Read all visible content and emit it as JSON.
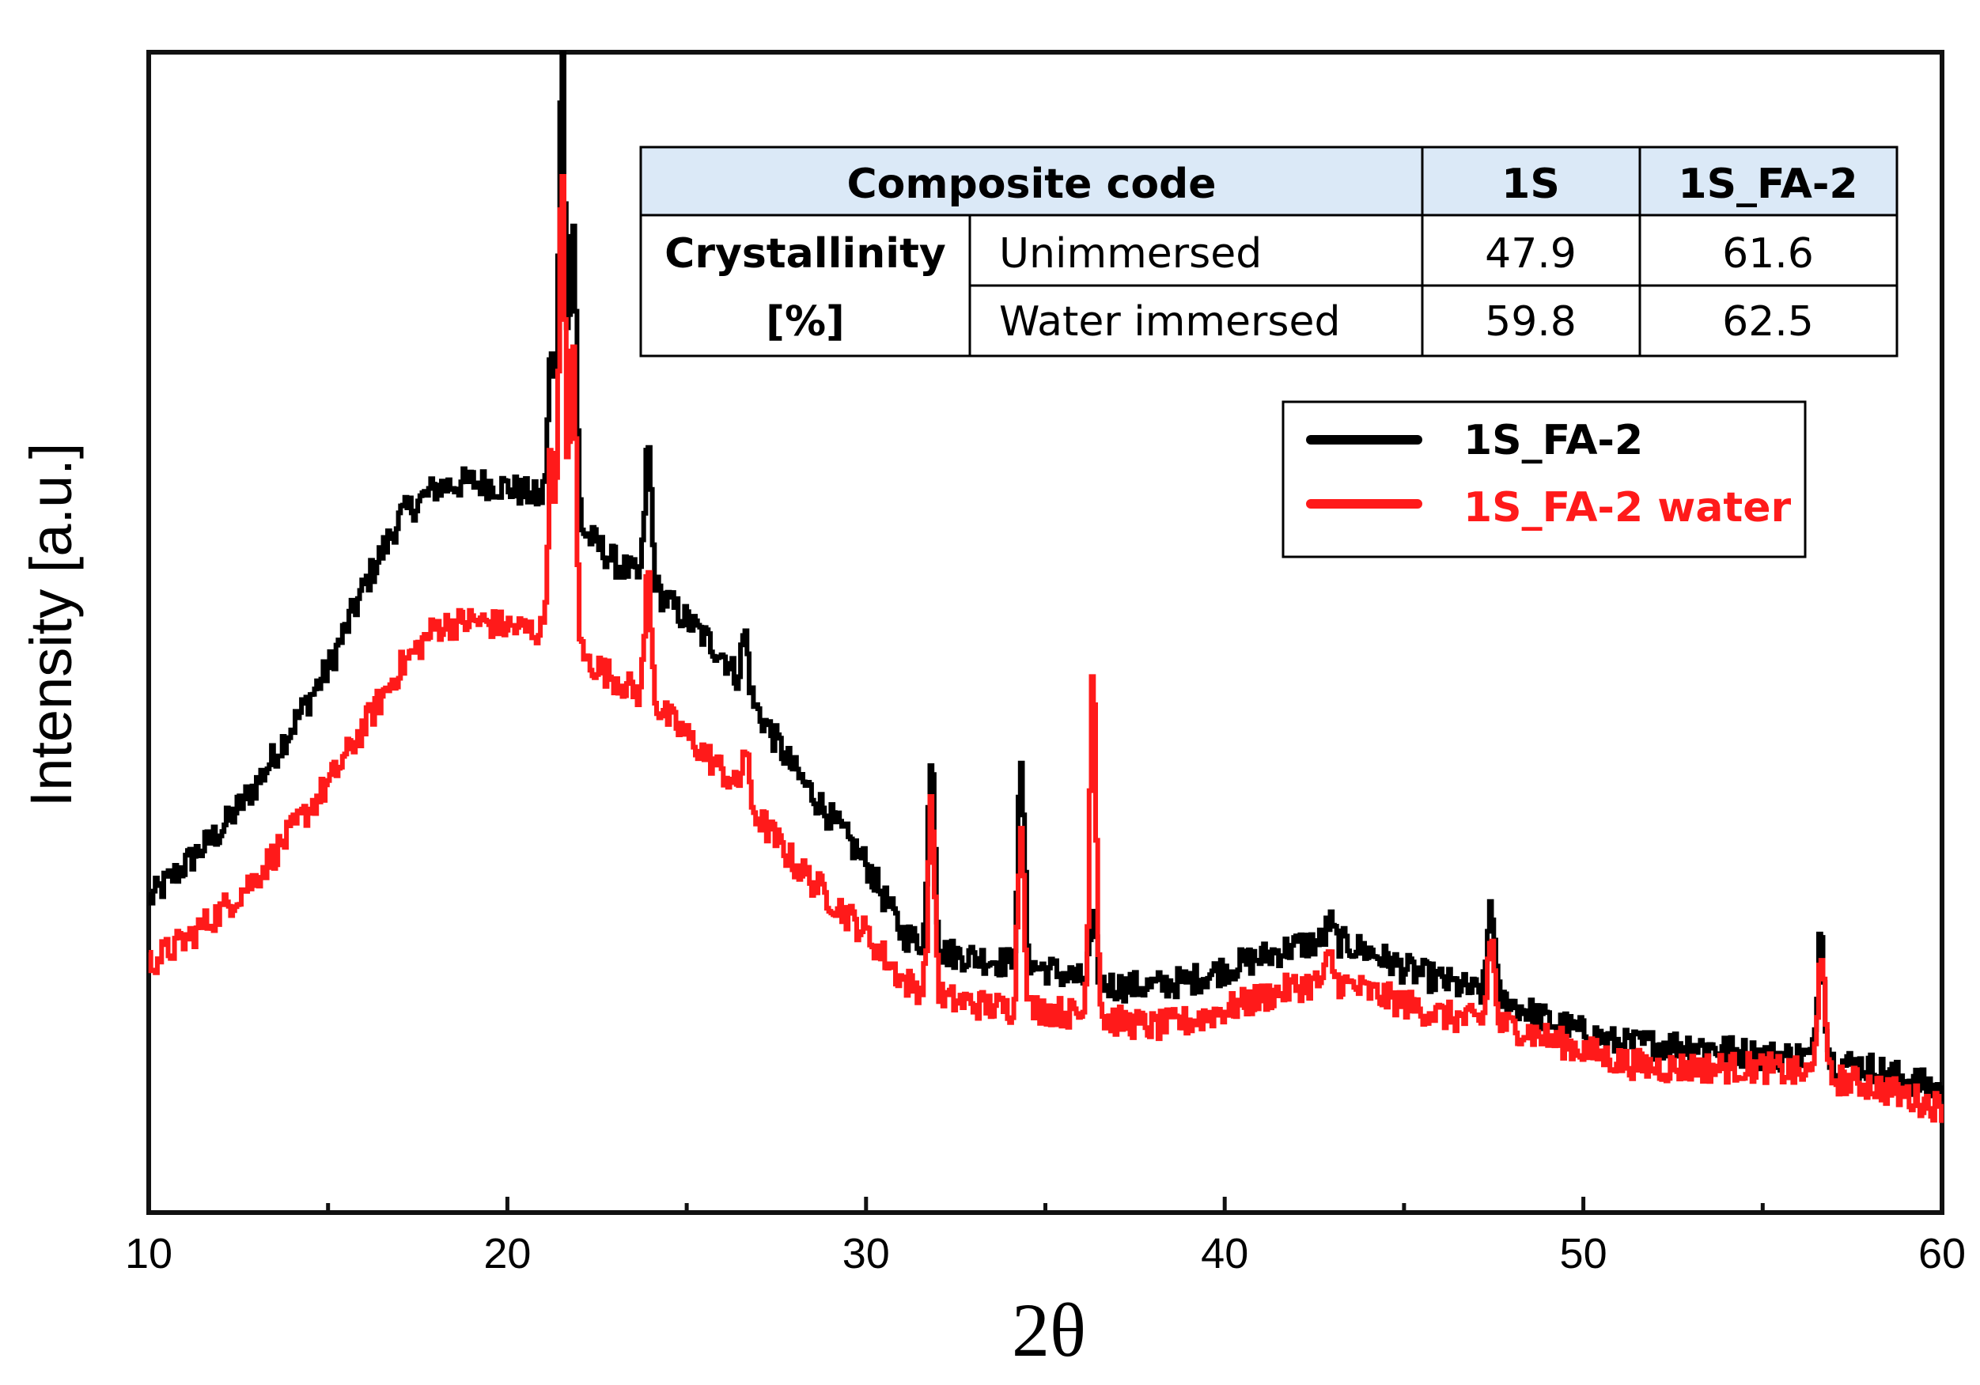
{
  "chart_data": {
    "type": "line",
    "title": "",
    "xlabel": "2θ",
    "ylabel": "Intensity [a.u.]",
    "xlim": [
      10,
      60
    ],
    "ylim": [
      0,
      100
    ],
    "x_ticks": [
      10,
      20,
      30,
      40,
      50,
      60
    ],
    "y_ticks_shown": false,
    "grid": false,
    "legend_position": "upper-right",
    "series": [
      {
        "name": "1S_FA-2",
        "color": "#000000",
        "baseline": [
          [
            10,
            27
          ],
          [
            11,
            30
          ],
          [
            12,
            33
          ],
          [
            13,
            37
          ],
          [
            14,
            42
          ],
          [
            15,
            47
          ],
          [
            16,
            54
          ],
          [
            17,
            60
          ],
          [
            18,
            62.5
          ],
          [
            19,
            63
          ],
          [
            20,
            62.5
          ],
          [
            21,
            61.5
          ],
          [
            22,
            59
          ],
          [
            23,
            56
          ],
          [
            24,
            54
          ],
          [
            25,
            51
          ],
          [
            26,
            48
          ],
          [
            27,
            43
          ],
          [
            28,
            38
          ],
          [
            29,
            34
          ],
          [
            30,
            30
          ],
          [
            31,
            24
          ],
          [
            32,
            22.5
          ],
          [
            33,
            22
          ],
          [
            34,
            21.5
          ],
          [
            35,
            21
          ],
          [
            36,
            20
          ],
          [
            37,
            19.5
          ],
          [
            38,
            19.5
          ],
          [
            39,
            20
          ],
          [
            40,
            21
          ],
          [
            41,
            22
          ],
          [
            42,
            23
          ],
          [
            43,
            23.5
          ],
          [
            44,
            22.5
          ],
          [
            45,
            21
          ],
          [
            46,
            20
          ],
          [
            47,
            19
          ],
          [
            48,
            18
          ],
          [
            49,
            16.5
          ],
          [
            50,
            15.5
          ],
          [
            51,
            14.5
          ],
          [
            52,
            14.5
          ],
          [
            53,
            14.5
          ],
          [
            54,
            14
          ],
          [
            55,
            13.5
          ],
          [
            56,
            13.5
          ],
          [
            57,
            13
          ],
          [
            58,
            12.5
          ],
          [
            59,
            11.5
          ],
          [
            60,
            10.5
          ]
        ],
        "peaks": [
          [
            21.2,
            74
          ],
          [
            21.5,
            100
          ],
          [
            21.8,
            86
          ],
          [
            23.9,
            66
          ],
          [
            26.6,
            50
          ],
          [
            31.8,
            40
          ],
          [
            34.3,
            38
          ],
          [
            36.3,
            25
          ],
          [
            42.9,
            25
          ],
          [
            47.4,
            27
          ],
          [
            56.6,
            25
          ]
        ]
      },
      {
        "name": "1S_FA-2 water",
        "color": "#ff1a1a",
        "baseline": [
          [
            10,
            21.5
          ],
          [
            11,
            23.5
          ],
          [
            12,
            26
          ],
          [
            13,
            29
          ],
          [
            14,
            33
          ],
          [
            15,
            37
          ],
          [
            16,
            42
          ],
          [
            17,
            47
          ],
          [
            18,
            50.5
          ],
          [
            19,
            51
          ],
          [
            20,
            50.5
          ],
          [
            21,
            50
          ],
          [
            22,
            48
          ],
          [
            23,
            46
          ],
          [
            24,
            44
          ],
          [
            25,
            41
          ],
          [
            26,
            38
          ],
          [
            27,
            34
          ],
          [
            28,
            30
          ],
          [
            29,
            27
          ],
          [
            30,
            24
          ],
          [
            31,
            20
          ],
          [
            32,
            18.5
          ],
          [
            33,
            18
          ],
          [
            34,
            17.5
          ],
          [
            35,
            17.5
          ],
          [
            36,
            17
          ],
          [
            37,
            16.5
          ],
          [
            38,
            16
          ],
          [
            39,
            16.5
          ],
          [
            40,
            17.5
          ],
          [
            41,
            18.5
          ],
          [
            42,
            19.5
          ],
          [
            43,
            20
          ],
          [
            44,
            19
          ],
          [
            45,
            18
          ],
          [
            46,
            17
          ],
          [
            47,
            16.5
          ],
          [
            48,
            16
          ],
          [
            49,
            15
          ],
          [
            50,
            14
          ],
          [
            51,
            13
          ],
          [
            52,
            12.5
          ],
          [
            53,
            12.5
          ],
          [
            54,
            12.5
          ],
          [
            55,
            12.5
          ],
          [
            56,
            12
          ],
          [
            57,
            11.5
          ],
          [
            58,
            11
          ],
          [
            59,
            10
          ],
          [
            60,
            9
          ]
        ],
        "peaks": [
          [
            21.2,
            66
          ],
          [
            21.5,
            89
          ],
          [
            21.8,
            75
          ],
          [
            23.9,
            55
          ],
          [
            26.6,
            40
          ],
          [
            31.8,
            35
          ],
          [
            34.3,
            33
          ],
          [
            36.3,
            47
          ],
          [
            42.9,
            22
          ],
          [
            47.4,
            24
          ],
          [
            56.6,
            23
          ]
        ]
      }
    ],
    "inset_table": {
      "header": [
        "Composite code",
        "1S",
        "1S_FA-2"
      ],
      "row_label": "Crystallinity",
      "row_label_unit": "[%]",
      "rows": [
        {
          "condition": "Unimmersed",
          "1S": "47.9",
          "1S_FA-2": "61.6"
        },
        {
          "condition": "Water immersed",
          "1S": "59.8",
          "1S_FA-2": "62.5"
        }
      ],
      "header_bg": "#dbe9f7"
    }
  }
}
